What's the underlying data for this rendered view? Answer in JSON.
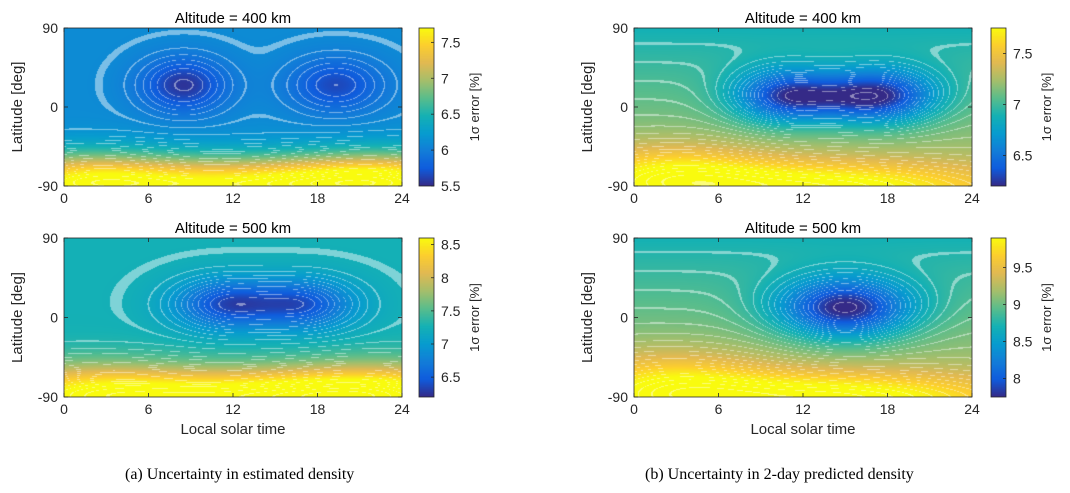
{
  "chart_data": [
    {
      "type": "heatmap",
      "panel": "a",
      "title": "Altitude = 400 km",
      "xlabel": "",
      "ylabel": "Latitude [deg]",
      "colorbar_label": "1σ error [%]",
      "xlim": [
        0,
        24
      ],
      "ylim": [
        -90,
        90
      ],
      "xticks": [
        0,
        6,
        12,
        18,
        24
      ],
      "yticks": [
        -90,
        0,
        90
      ],
      "clim": [
        5.5,
        7.7
      ],
      "cticks": [
        5.5,
        6,
        6.5,
        7,
        7.5
      ],
      "colormap": "parula",
      "field": {
        "base": 6.1,
        "tilt": 0,
        "gaussians": [
          {
            "lst": 8.5,
            "lat": 25,
            "slst": 2.2,
            "slat": 22,
            "amp": -0.55
          },
          {
            "lst": 19.3,
            "lat": 25,
            "slst": 2.4,
            "slat": 22,
            "amp": -0.45
          },
          {
            "lst": 13.5,
            "lat": -88,
            "slst": 9.0,
            "slat": 22,
            "amp": 1.45
          },
          {
            "lst": 0.5,
            "lat": -85,
            "slst": 5.5,
            "slat": 24,
            "amp": 1.15
          },
          {
            "lst": 23.8,
            "lat": -85,
            "slst": 5.5,
            "slat": 24,
            "amp": 1.1
          }
        ]
      }
    },
    {
      "type": "heatmap",
      "panel": "a",
      "title": "Altitude = 500 km",
      "xlabel": "Local solar time",
      "ylabel": "Latitude [deg]",
      "colorbar_label": "1σ error [%]",
      "xlim": [
        0,
        24
      ],
      "ylim": [
        -90,
        90
      ],
      "xticks": [
        0,
        6,
        12,
        18,
        24
      ],
      "yticks": [
        -90,
        0,
        90
      ],
      "clim": [
        6.2,
        8.6
      ],
      "cticks": [
        6.5,
        7,
        7.5,
        8,
        8.5
      ],
      "colormap": "parula",
      "field": {
        "base": 7.25,
        "tilt": 0,
        "gaussians": [
          {
            "lst": 11.5,
            "lat": 15,
            "slst": 2.6,
            "slat": 20,
            "amp": -0.85
          },
          {
            "lst": 17.0,
            "lat": 15,
            "slst": 2.6,
            "slat": 20,
            "amp": -0.8
          },
          {
            "lst": 14.0,
            "lat": -90,
            "slst": 9.0,
            "slat": 22,
            "amp": 1.35
          },
          {
            "lst": 1.0,
            "lat": -88,
            "slst": 6.0,
            "slat": 26,
            "amp": 1.0
          },
          {
            "lst": 23.5,
            "lat": -88,
            "slst": 6.0,
            "slat": 26,
            "amp": 0.95
          }
        ]
      }
    },
    {
      "type": "heatmap",
      "panel": "b",
      "title": "Altitude = 400 km",
      "xlabel": "",
      "ylabel": "Latitude [deg]",
      "colorbar_label": "1σ error [%]",
      "xlim": [
        0,
        24
      ],
      "ylim": [
        -90,
        90
      ],
      "xticks": [
        0,
        6,
        12,
        18,
        24
      ],
      "yticks": [
        -90,
        0,
        90
      ],
      "clim": [
        6.2,
        7.75
      ],
      "cticks": [
        6.5,
        7,
        7.5
      ],
      "colormap": "parula",
      "field": {
        "base": 7.1,
        "tilt": 0.22,
        "gaussians": [
          {
            "lst": 10.5,
            "lat": 12,
            "slst": 2.6,
            "slat": 22,
            "amp": -0.65
          },
          {
            "lst": 17.8,
            "lat": 12,
            "slst": 2.8,
            "slat": 22,
            "amp": -0.72
          },
          {
            "lst": 14.0,
            "lat": 10,
            "slst": 3.0,
            "slat": 20,
            "amp": -0.35
          },
          {
            "lst": 2.5,
            "lat": -80,
            "slst": 5.0,
            "slat": 25,
            "amp": 0.45
          },
          {
            "lst": 14.0,
            "lat": -90,
            "slst": 8.0,
            "slat": 20,
            "amp": 0.5
          }
        ]
      }
    },
    {
      "type": "heatmap",
      "panel": "b",
      "title": "Altitude = 500 km",
      "xlabel": "Local solar time",
      "ylabel": "Latitude [deg]",
      "colorbar_label": "1σ error [%]",
      "xlim": [
        0,
        24
      ],
      "ylim": [
        -90,
        90
      ],
      "xticks": [
        0,
        6,
        12,
        18,
        24
      ],
      "yticks": [
        -90,
        0,
        90
      ],
      "clim": [
        7.75,
        9.9
      ],
      "cticks": [
        8,
        8.5,
        9,
        9.5
      ],
      "colormap": "parula",
      "field": {
        "base": 9.0,
        "tilt": 0.3,
        "gaussians": [
          {
            "lst": 15.0,
            "lat": 10,
            "slst": 3.4,
            "slat": 24,
            "amp": -1.25
          },
          {
            "lst": 2.5,
            "lat": -80,
            "slst": 5.0,
            "slat": 28,
            "amp": 0.6
          },
          {
            "lst": 14.5,
            "lat": -90,
            "slst": 8.0,
            "slat": 20,
            "amp": 0.75
          }
        ]
      }
    }
  ],
  "captions": {
    "a": "(a)  Uncertainty in estimated density",
    "b": "(b)  Uncertainty in 2-day predicted density"
  }
}
